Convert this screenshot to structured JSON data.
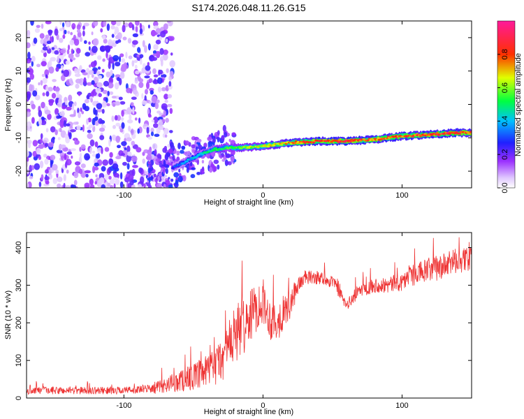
{
  "figure": {
    "title": "S174.2026.048.11.26.G15"
  },
  "chart_data": [
    {
      "type": "heatmap",
      "xlabel": "Height of straight line (km)",
      "ylabel": "Frequency (Hz)",
      "xlim": [
        -170,
        150
      ],
      "ylim": [
        -25,
        25
      ],
      "xticks": [
        -100,
        0,
        100
      ],
      "yticks": [
        -20,
        -10,
        0,
        10,
        20
      ],
      "grid": false,
      "colorbar": {
        "label": "Normalized spectral amplitude",
        "range": [
          0,
          1
        ],
        "ticks": [
          "0.0",
          "0.2",
          "0.4",
          "0.6",
          "0.8"
        ],
        "colormap": "rainbow (white → violet → blue → cyan → green → yellow → red → magenta)"
      },
      "ridge": {
        "description": "dominant spectral line",
        "x": [
          -65,
          -55,
          -45,
          -35,
          -25,
          -15,
          0,
          20,
          40,
          60,
          80,
          100,
          120,
          140,
          150
        ],
        "y": [
          -19,
          -17,
          -15,
          -13.5,
          -13,
          -13,
          -12.5,
          -11.5,
          -11,
          -11,
          -10.5,
          -9.5,
          -9,
          -8.5,
          -8.5
        ],
        "amplitude": [
          0.3,
          0.4,
          0.45,
          0.5,
          0.55,
          0.6,
          0.65,
          0.75,
          0.85,
          0.85,
          0.8,
          0.8,
          0.85,
          0.85,
          0.8
        ]
      },
      "noise_region": {
        "description": "scattered low-amplitude noise",
        "x_range": [
          -170,
          -65
        ],
        "amplitude_range": [
          0.0,
          0.25
        ]
      }
    },
    {
      "type": "line",
      "xlabel": "Height of straight line (km)",
      "ylabel": "SNR (10 * v/v)",
      "xlim": [
        -170,
        150
      ],
      "ylim": [
        0,
        440
      ],
      "xticks": [
        -100,
        0,
        100
      ],
      "yticks": [
        0,
        100,
        200,
        300,
        400
      ],
      "grid": false,
      "series": [
        {
          "color": "#ee3333",
          "x": [
            -170,
            -150,
            -130,
            -110,
            -90,
            -80,
            -70,
            -60,
            -50,
            -40,
            -30,
            -20,
            -15,
            -10,
            -5,
            0,
            5,
            10,
            15,
            20,
            25,
            30,
            40,
            50,
            55,
            60,
            70,
            80,
            90,
            100,
            110,
            120,
            130,
            140,
            150
          ],
          "y": [
            20,
            20,
            20,
            20,
            22,
            25,
            35,
            45,
            55,
            70,
            100,
            170,
            190,
            210,
            240,
            260,
            210,
            200,
            230,
            250,
            300,
            320,
            320,
            310,
            280,
            245,
            290,
            300,
            300,
            310,
            330,
            340,
            350,
            365,
            370
          ],
          "noise_amplitude": [
            10,
            10,
            10,
            10,
            10,
            15,
            20,
            30,
            35,
            45,
            60,
            80,
            80,
            70,
            65,
            60,
            55,
            55,
            45,
            40,
            25,
            20,
            18,
            18,
            15,
            15,
            20,
            20,
            22,
            25,
            30,
            35,
            35,
            35,
            30
          ]
        }
      ]
    }
  ]
}
